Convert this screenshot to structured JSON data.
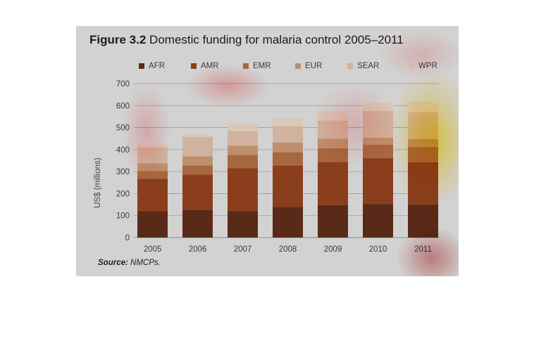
{
  "figure": {
    "number": "Figure 3.2",
    "title": "Domestic funding for malaria control 2005–2011",
    "source_label": "Source:",
    "source_text": "NMCPs."
  },
  "colors": {
    "AFR": "#5a2a18",
    "AMR": "#8a3e1c",
    "EMR": "#a7673f",
    "EUR": "#bd8f6c",
    "SEAR": "#cfb39e",
    "WPR": "#d9c7b8",
    "plot_bg": "#d2d2d2",
    "grid": "#9c9c9c"
  },
  "chart_data": {
    "type": "bar",
    "stacked": true,
    "categories": [
      "2005",
      "2006",
      "2007",
      "2008",
      "2009",
      "2010",
      "2011"
    ],
    "series": [
      {
        "name": "AFR",
        "values": [
          120,
          126,
          120,
          140,
          148,
          152,
          150
        ]
      },
      {
        "name": "AMR",
        "values": [
          148,
          160,
          196,
          188,
          196,
          210,
          192
        ]
      },
      {
        "name": "EMR",
        "values": [
          34,
          42,
          60,
          60,
          62,
          60,
          70
        ]
      },
      {
        "name": "EUR",
        "values": [
          36,
          42,
          42,
          44,
          44,
          32,
          36
        ]
      },
      {
        "name": "SEAR",
        "values": [
          72,
          88,
          66,
          74,
          82,
          122,
          122
        ]
      },
      {
        "name": "WPR",
        "values": [
          12,
          8,
          32,
          38,
          44,
          38,
          50
        ]
      }
    ],
    "xlabel": "",
    "ylabel": "US$ (millions)",
    "ylim": [
      0,
      700
    ],
    "yticks": [
      "0",
      "100",
      "200",
      "300",
      "400",
      "500",
      "600",
      "700"
    ],
    "grid": true,
    "legend_position": "top"
  }
}
